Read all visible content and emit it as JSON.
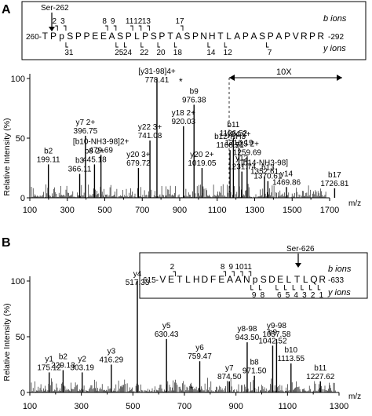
{
  "chart_data": [
    {
      "panel": "A",
      "type": "bar",
      "ylabel": "Relative Intensity (%)",
      "xlabel": "m/z",
      "xlim": [
        100,
        1700
      ],
      "xticks": [
        "100",
        "300",
        "500",
        "700",
        "900",
        "1100",
        "1300",
        "1500",
        "1700"
      ],
      "yticks": [
        "0",
        "50",
        "100"
      ],
      "ylim": [
        0,
        100
      ],
      "sequence": {
        "start": "260-",
        "residues": [
          "T",
          "P",
          "p",
          "S",
          "P",
          "P",
          "E",
          "E",
          "A",
          "S",
          "P",
          "L",
          "P",
          "S",
          "P",
          "T",
          "A",
          "S",
          "P",
          "N",
          "H",
          "T",
          "L",
          "A",
          "P",
          "A",
          "S",
          "P",
          "A",
          "P",
          "V",
          "R",
          "P",
          "R"
        ],
        "end": "-292",
        "site_label": "Ser-262",
        "b_label": "b ions",
        "y_label": "y ions",
        "b_numbers": [
          "2",
          "3",
          "8",
          "9",
          "11",
          "12",
          "13",
          "17"
        ],
        "y_numbers": [
          "31",
          "25",
          "24",
          "22",
          "20",
          "18",
          "14",
          "12",
          "7"
        ]
      },
      "zoom_label": "10X",
      "annotations": [
        {
          "label": "y7 2+",
          "value": "396.75",
          "mz": 396.75,
          "rel": 52
        },
        {
          "label": "b2",
          "value": "199.11",
          "mz": 199.11,
          "rel": 28
        },
        {
          "label": "b3",
          "value": "366.11",
          "mz": 366.11,
          "rel": 20
        },
        {
          "label": "[b10-NH3-98]2+",
          "value": "479.69",
          "mz": 479.69,
          "rel": 36
        },
        {
          "label": "[y31-98]4+",
          "value": "778.41",
          "mz": 778.41,
          "rel": 100
        },
        {
          "label": "b8 2+",
          "value": "445.18",
          "mz": 445.18,
          "rel": 28
        },
        {
          "label": "y22 3+",
          "value": "741.08",
          "mz": 741.08,
          "rel": 48
        },
        {
          "label": "y20 3+",
          "value": "679.72",
          "mz": 679.72,
          "rel": 25
        },
        {
          "label": "y18 2+",
          "value": "920.03",
          "mz": 920.03,
          "rel": 60
        },
        {
          "label": "b9",
          "value": "976.38",
          "mz": 976.38,
          "rel": 78
        },
        {
          "label": "b12-NH3",
          "value": "1168.51",
          "mz": 1168.51,
          "rel": 40
        },
        {
          "label": "b11",
          "value": "1186.52",
          "mz": 1186.52,
          "rel": 50
        },
        {
          "label": "y20 2+",
          "value": "1019.05",
          "mz": 1019.05,
          "rel": 25
        },
        {
          "label": "y24 2+",
          "value": "1216.19",
          "mz": 1216.19,
          "rel": 42
        },
        {
          "label": "y25 2+",
          "value": "1259.69",
          "mz": 1259.69,
          "rel": 34
        },
        {
          "label": "y12",
          "value": "1231.74",
          "mz": 1231.74,
          "rel": 22
        },
        {
          "label": "[b14-NH3-98]",
          "value": "1352.61",
          "mz": 1352.61,
          "rel": 18
        },
        {
          "label": "b13",
          "value": "1370.61",
          "mz": 1370.61,
          "rel": 14
        },
        {
          "label": "y14",
          "value": "1469.86",
          "mz": 1469.86,
          "rel": 9
        },
        {
          "label": "b17",
          "value": "1726.81",
          "mz": 1726.81,
          "rel": 8
        }
      ],
      "star": "*"
    },
    {
      "panel": "B",
      "type": "bar",
      "ylabel": "Relative Intensity (%)",
      "xlabel": "m/z",
      "xlim": [
        100,
        1300
      ],
      "xticks": [
        "100",
        "300",
        "500",
        "700",
        "900",
        "1100",
        "1300"
      ],
      "yticks": [
        "0",
        "50",
        "100"
      ],
      "ylim": [
        0,
        100
      ],
      "sequence": {
        "start": "615-",
        "residues": [
          "V",
          "E",
          "T",
          "L",
          "H",
          "D",
          "F",
          "E",
          "A",
          "A",
          "N",
          "p",
          "S",
          "D",
          "E",
          "L",
          "T",
          "L",
          "Q",
          "R"
        ],
        "end": "-633",
        "site_label": "Ser-626",
        "b_label": "b ions",
        "y_label": "y ions",
        "b_numbers": [
          "2",
          "8",
          "9",
          "10",
          "11"
        ],
        "y_numbers": [
          "9",
          "8",
          "6",
          "5",
          "4",
          "3",
          "2",
          "1"
        ]
      },
      "annotations": [
        {
          "label": "y1",
          "value": "175.12",
          "mz": 175.12,
          "rel": 18
        },
        {
          "label": "b2",
          "value": "229.13",
          "mz": 229.13,
          "rel": 20
        },
        {
          "label": "y2",
          "value": "303.19",
          "mz": 303.19,
          "rel": 18
        },
        {
          "label": "y3",
          "value": "416.29",
          "mz": 416.29,
          "rel": 25
        },
        {
          "label": "y4",
          "value": "517.33",
          "mz": 517.33,
          "rel": 100
        },
        {
          "label": "y5",
          "value": "630.43",
          "mz": 630.43,
          "rel": 48
        },
        {
          "label": "y6",
          "value": "759.47",
          "mz": 759.47,
          "rel": 28
        },
        {
          "label": "y7",
          "value": "874.50",
          "mz": 874.5,
          "rel": 10
        },
        {
          "label": "y8-98",
          "value": "943.50",
          "mz": 943.5,
          "rel": 45
        },
        {
          "label": "b8",
          "value": "971.50",
          "mz": 971.5,
          "rel": 15
        },
        {
          "label": "b9",
          "value": "1042.52",
          "mz": 1042.52,
          "rel": 42
        },
        {
          "label": "y9-98",
          "value": "1057.58",
          "mz": 1057.58,
          "rel": 48
        },
        {
          "label": "b10",
          "value": "1113.55",
          "mz": 1113.55,
          "rel": 26
        },
        {
          "label": "b11",
          "value": "1227.62",
          "mz": 1227.62,
          "rel": 10
        }
      ],
      "star": "*"
    }
  ]
}
